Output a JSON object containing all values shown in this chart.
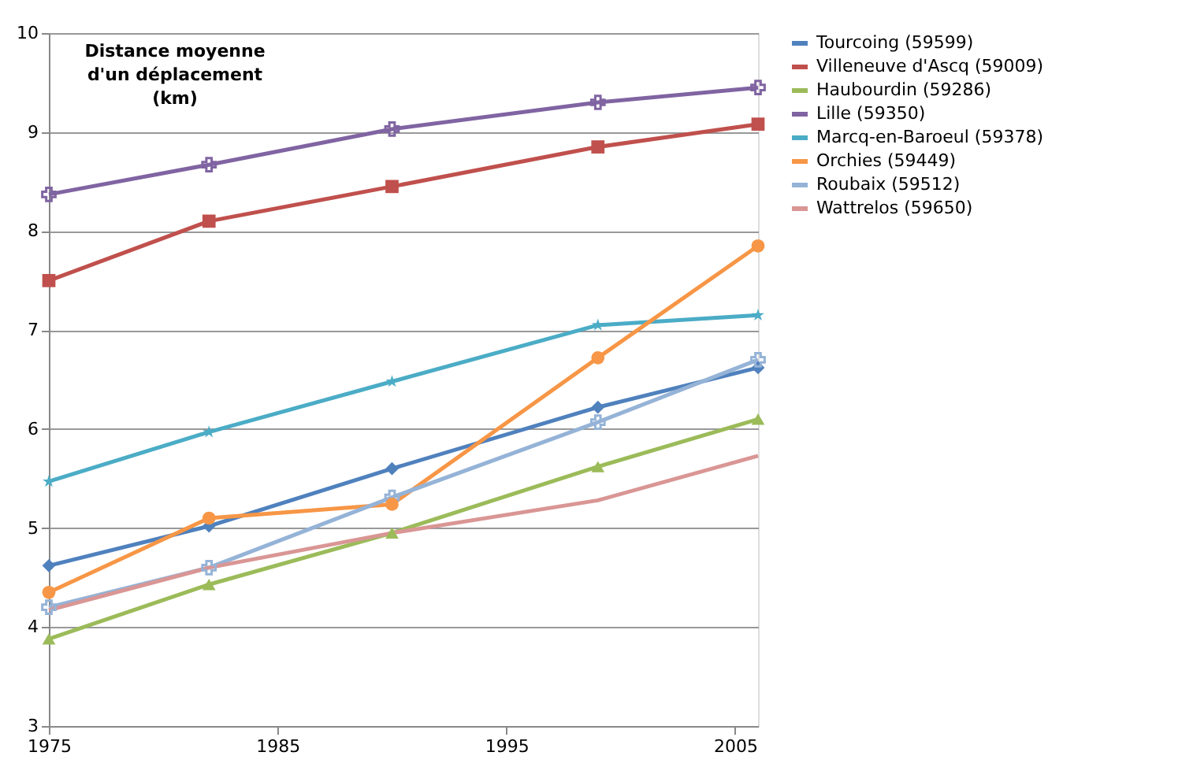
{
  "chart_data": {
    "type": "line",
    "ylabel": "Distance moyenne d'un déplacement (km)",
    "x": [
      1975,
      1982,
      1990,
      1999,
      2006
    ],
    "xlim": [
      1975,
      2006
    ],
    "xticks": [
      1975,
      1985,
      1995,
      2005
    ],
    "ylim": [
      3,
      10
    ],
    "yticks": [
      3,
      4,
      5,
      6,
      7,
      8,
      9,
      10
    ],
    "grid": "y",
    "legend": "right",
    "series": [
      {
        "name": "Tourcoing (59599)",
        "color": "#4f81bd",
        "marker": "diamond",
        "values": [
          4.62,
          5.02,
          5.6,
          6.22,
          6.62
        ]
      },
      {
        "name": "Villeneuve d'Ascq (59009)",
        "color": "#c0504d",
        "marker": "square",
        "values": [
          7.5,
          8.1,
          8.45,
          8.85,
          9.08
        ]
      },
      {
        "name": "Haubourdin (59286)",
        "color": "#9bbb59",
        "marker": "triangle",
        "values": [
          3.88,
          4.43,
          4.95,
          5.62,
          6.1
        ]
      },
      {
        "name": "Lille (59350)",
        "color": "#8064a2",
        "marker": "cross",
        "values": [
          8.37,
          8.67,
          9.03,
          9.3,
          9.45
        ]
      },
      {
        "name": "Marcq-en-Baroeul (59378)",
        "color": "#4bacc6",
        "marker": "star",
        "values": [
          5.47,
          5.97,
          6.48,
          7.05,
          7.15
        ]
      },
      {
        "name": "Orchies (59449)",
        "color": "#f79646",
        "marker": "circle",
        "values": [
          4.35,
          5.1,
          5.24,
          6.72,
          7.85
        ]
      },
      {
        "name": "Roubaix (59512)",
        "color": "#95b3d7",
        "marker": "cross",
        "values": [
          4.2,
          4.6,
          5.31,
          6.07,
          6.7
        ]
      },
      {
        "name": "Wattrelos (59650)",
        "color": "#d99694",
        "marker": "none",
        "values": [
          4.17,
          4.6,
          4.95,
          5.28,
          5.73
        ]
      }
    ]
  }
}
